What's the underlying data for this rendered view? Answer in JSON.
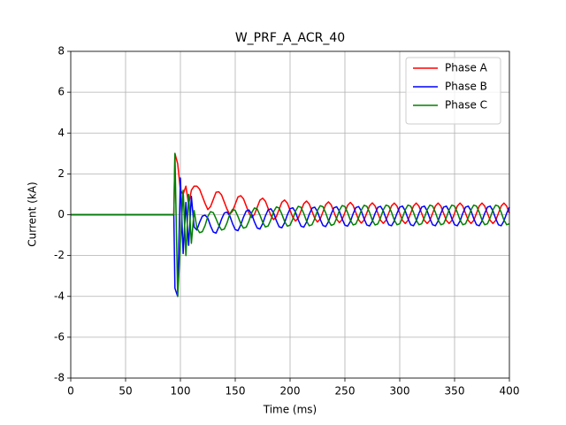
{
  "chart_data": {
    "type": "line",
    "title": "W_PRF_A_ACR_40",
    "x_label": "Time (ms)",
    "y_label": "Current (kA)",
    "xlim": [
      0,
      400
    ],
    "ylim": [
      -8,
      8
    ],
    "xticks": [
      0,
      50,
      100,
      150,
      200,
      250,
      300,
      350,
      400
    ],
    "yticks": [
      -8,
      -6,
      -4,
      -2,
      0,
      2,
      4,
      6,
      8
    ],
    "grid": true,
    "legend": "upper right",
    "x": [
      0,
      94,
      95,
      97.5,
      100,
      102.5,
      105,
      107.5,
      110,
      112.5,
      115,
      117.5,
      120,
      122.5,
      125,
      127.5,
      130,
      132.5,
      135,
      137.5,
      140,
      142.5,
      145,
      147.5,
      150,
      152.5,
      155,
      157.5,
      160,
      162.5,
      165,
      167.5,
      170,
      172.5,
      175,
      177.5,
      180,
      182.5,
      185,
      187.5,
      190,
      192.5,
      195,
      197.5,
      200,
      202.5,
      205,
      207.5,
      210,
      212.5,
      215,
      217.5,
      220,
      222.5,
      225,
      227.5,
      230,
      232.5,
      235,
      237.5,
      240,
      242.5,
      245,
      247.5,
      250,
      252.5,
      255,
      257.5,
      260,
      262.5,
      265,
      267.5,
      270,
      272.5,
      275,
      277.5,
      280,
      282.5,
      285,
      287.5,
      290,
      292.5,
      295,
      297.5,
      300,
      302.5,
      305,
      307.5,
      310,
      312.5,
      315,
      317.5,
      320,
      322.5,
      325,
      327.5,
      330,
      332.5,
      335,
      337.5,
      340,
      342.5,
      345,
      347.5,
      350,
      352.5,
      355,
      357.5,
      360,
      362.5,
      365,
      367.5,
      370,
      372.5,
      375,
      377.5,
      380,
      382.5,
      385,
      387.5,
      390,
      392.5,
      395,
      397.5,
      400
    ],
    "series": [
      {
        "name": "Phase A",
        "color": "#ff0000",
        "values": [
          0,
          0,
          3.0,
          2.5,
          1.2,
          1.0,
          1.4,
          0.5,
          1.2,
          1.4,
          1.4,
          1.25,
          0.9,
          0.55,
          0.25,
          0.4,
          0.75,
          1.1,
          1.12,
          0.97,
          0.62,
          0.27,
          0.02,
          0.17,
          0.52,
          0.87,
          0.93,
          0.78,
          0.43,
          0.08,
          -0.14,
          0.01,
          0.36,
          0.71,
          0.81,
          0.66,
          0.31,
          -0.04,
          -0.24,
          -0.09,
          0.26,
          0.61,
          0.72,
          0.57,
          0.22,
          -0.13,
          -0.31,
          -0.16,
          0.19,
          0.54,
          0.67,
          0.52,
          0.17,
          -0.18,
          -0.36,
          -0.21,
          0.14,
          0.49,
          0.63,
          0.48,
          0.13,
          -0.22,
          -0.39,
          -0.24,
          0.11,
          0.46,
          0.6,
          0.45,
          0.1,
          -0.25,
          -0.41,
          -0.26,
          0.09,
          0.44,
          0.58,
          0.43,
          0.08,
          -0.27,
          -0.42,
          -0.27,
          0.08,
          0.43,
          0.57,
          0.42,
          0.07,
          -0.28,
          -0.43,
          -0.28,
          0.07,
          0.42,
          0.57,
          0.42,
          0.07,
          -0.28,
          -0.43,
          -0.28,
          0.07,
          0.42,
          0.57,
          0.42,
          0.07,
          -0.28,
          -0.43,
          -0.28,
          0.07,
          0.42,
          0.57,
          0.42,
          0.07,
          -0.28,
          -0.43,
          -0.28,
          0.07,
          0.42,
          0.57,
          0.42,
          0.07,
          -0.28,
          -0.43,
          -0.28,
          0.07,
          0.42,
          0.57,
          0.42,
          0.07
        ]
      },
      {
        "name": "Phase B",
        "color": "#0000ff",
        "values": [
          0,
          0,
          -3.6,
          -4.0,
          1.8,
          -1.9,
          0.6,
          -1.5,
          0.9,
          -0.6,
          -0.75,
          -0.37,
          -0.07,
          -0.02,
          -0.17,
          -0.55,
          -0.85,
          -0.9,
          -0.6,
          -0.22,
          0.08,
          0.13,
          -0.05,
          -0.43,
          -0.73,
          -0.78,
          -0.5,
          -0.12,
          0.18,
          0.23,
          0.03,
          -0.35,
          -0.65,
          -0.7,
          -0.44,
          -0.06,
          0.24,
          0.29,
          0.09,
          -0.29,
          -0.59,
          -0.64,
          -0.39,
          -0.01,
          0.29,
          0.34,
          0.12,
          -0.26,
          -0.56,
          -0.61,
          -0.36,
          0.02,
          0.32,
          0.37,
          0.15,
          -0.23,
          -0.53,
          -0.58,
          -0.34,
          0.04,
          0.34,
          0.39,
          0.17,
          -0.21,
          -0.51,
          -0.56,
          -0.33,
          0.05,
          0.35,
          0.4,
          0.18,
          -0.2,
          -0.5,
          -0.55,
          -0.32,
          0.06,
          0.36,
          0.41,
          0.19,
          -0.19,
          -0.49,
          -0.54,
          -0.31,
          0.07,
          0.37,
          0.42,
          0.19,
          -0.19,
          -0.49,
          -0.54,
          -0.31,
          0.07,
          0.37,
          0.42,
          0.19,
          -0.19,
          -0.49,
          -0.54,
          -0.31,
          0.07,
          0.37,
          0.42,
          0.19,
          -0.19,
          -0.49,
          -0.54,
          -0.31,
          0.07,
          0.37,
          0.42,
          0.19,
          -0.19,
          -0.49,
          -0.54,
          -0.31,
          0.07,
          0.37,
          0.42,
          0.19,
          -0.19,
          -0.49,
          -0.54,
          -0.31,
          0.07,
          0.37
        ]
      },
      {
        "name": "Phase C",
        "color": "#008000",
        "values": [
          0,
          0,
          3.0,
          -4.0,
          -1.5,
          1.2,
          -2.0,
          1.0,
          -1.4,
          0.2,
          -0.65,
          -0.88,
          -0.83,
          -0.53,
          -0.08,
          0.15,
          0.1,
          -0.2,
          -0.52,
          -0.75,
          -0.7,
          -0.4,
          0.03,
          0.26,
          0.21,
          -0.09,
          -0.43,
          -0.66,
          -0.61,
          -0.31,
          0.1,
          0.33,
          0.28,
          -0.02,
          -0.37,
          -0.6,
          -0.55,
          -0.25,
          0.15,
          0.38,
          0.33,
          0.03,
          -0.33,
          -0.56,
          -0.51,
          -0.21,
          0.18,
          0.41,
          0.36,
          0.06,
          -0.31,
          -0.54,
          -0.49,
          -0.19,
          0.21,
          0.44,
          0.39,
          0.09,
          -0.29,
          -0.52,
          -0.47,
          -0.17,
          0.22,
          0.45,
          0.4,
          0.1,
          -0.27,
          -0.5,
          -0.45,
          -0.15,
          0.23,
          0.46,
          0.41,
          0.11,
          -0.27,
          -0.5,
          -0.45,
          -0.15,
          0.24,
          0.47,
          0.42,
          0.12,
          -0.26,
          -0.49,
          -0.44,
          -0.14,
          0.24,
          0.47,
          0.42,
          0.12,
          -0.26,
          -0.49,
          -0.44,
          -0.14,
          0.24,
          0.47,
          0.42,
          0.12,
          -0.26,
          -0.49,
          -0.44,
          -0.14,
          0.24,
          0.47,
          0.42,
          0.12,
          -0.26,
          -0.49,
          -0.44,
          -0.14,
          0.24,
          0.47,
          0.42,
          0.12,
          -0.26,
          -0.49,
          -0.44,
          -0.14,
          0.24,
          0.47,
          0.42,
          0.12,
          -0.26,
          -0.49,
          -0.44
        ]
      }
    ]
  }
}
